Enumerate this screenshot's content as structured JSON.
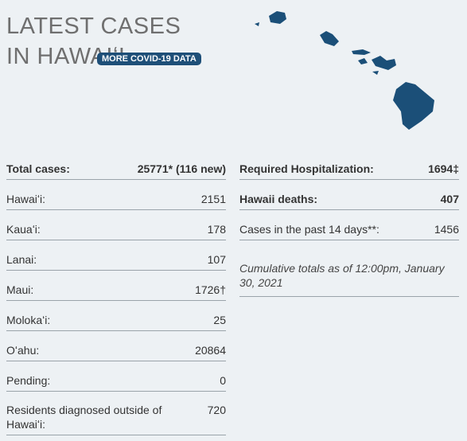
{
  "header": {
    "title": "LATEST CASES IN HAWAIʻI",
    "button": "MORE COVID-19 DATA"
  },
  "left": {
    "rows": [
      {
        "label": "Total cases:",
        "value": "25771* (116 new)"
      },
      {
        "label": "Hawaiʻi:",
        "value": "2151"
      },
      {
        "label": "Kauaʻi:",
        "value": "178"
      },
      {
        "label": "Lanai:",
        "value": "107"
      },
      {
        "label": "Maui:",
        "value": "1726†"
      },
      {
        "label": "Molokaʻi:",
        "value": "25"
      },
      {
        "label": "Oʻahu:",
        "value": "20864"
      },
      {
        "label": "Pending:",
        "value": "0"
      },
      {
        "label": "Residents diagnosed outside of Hawaiʻi:",
        "value": "720"
      }
    ]
  },
  "right": {
    "rows": [
      {
        "label": "Required Hospitalization:",
        "value": "1694‡"
      },
      {
        "label": "Hawaii deaths:",
        "value": "407"
      },
      {
        "label": "Cases in the past 14 days**:",
        "value": "1456"
      }
    ],
    "note": "Cumulative totals as of 12:00pm, January 30, 2021"
  }
}
